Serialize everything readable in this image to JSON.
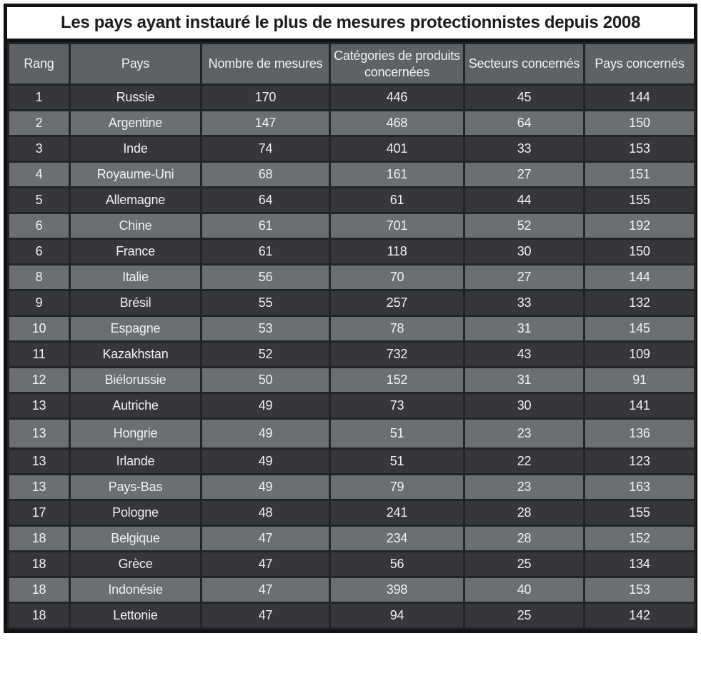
{
  "chart_data": {
    "type": "table",
    "title": "Les pays ayant instauré le plus de mesures protectionnistes depuis 2008",
    "columns": [
      "Rang",
      "Pays",
      "Nombre de mesures",
      "Catégories de produits concernées",
      "Secteurs concernés",
      "Pays concernés"
    ],
    "rows": [
      [
        "1",
        "Russie",
        "170",
        "446",
        "45",
        "144"
      ],
      [
        "2",
        "Argentine",
        "147",
        "468",
        "64",
        "150"
      ],
      [
        "3",
        "Inde",
        "74",
        "401",
        "33",
        "153"
      ],
      [
        "4",
        "Royaume-Uni",
        "68",
        "161",
        "27",
        "151"
      ],
      [
        "5",
        "Allemagne",
        "64",
        "61",
        "44",
        "155"
      ],
      [
        "6",
        "Chine",
        "61",
        "701",
        "52",
        "192"
      ],
      [
        "6",
        "France",
        "61",
        "118",
        "30",
        "150"
      ],
      [
        "8",
        "Italie",
        "56",
        "70",
        "27",
        "144"
      ],
      [
        "9",
        "Brésil",
        "55",
        "257",
        "33",
        "132"
      ],
      [
        "10",
        "Espagne",
        "53",
        "78",
        "31",
        "145"
      ],
      [
        "11",
        "Kazakhstan",
        "52",
        "732",
        "43",
        "109"
      ],
      [
        "12",
        "Biélorussie",
        "50",
        "152",
        "31",
        "91"
      ],
      [
        "13",
        "Autriche",
        "49",
        "73",
        "30",
        "141"
      ],
      [
        "13",
        "Hongrie",
        "49",
        "51",
        "23",
        "136"
      ],
      [
        "13",
        "Irlande",
        "49",
        "51",
        "22",
        "123"
      ],
      [
        "13",
        "Pays-Bas",
        "49",
        "79",
        "23",
        "163"
      ],
      [
        "17",
        "Pologne",
        "48",
        "241",
        "28",
        "155"
      ],
      [
        "18",
        "Belgique",
        "47",
        "234",
        "28",
        "152"
      ],
      [
        "18",
        "Grèce",
        "47",
        "56",
        "25",
        "134"
      ],
      [
        "18",
        "Indonésie",
        "47",
        "398",
        "40",
        "153"
      ],
      [
        "18",
        "Lettonie",
        "47",
        "94",
        "25",
        "142"
      ]
    ],
    "layout": {
      "row_striping": "alternating dark/light starting dark",
      "header_lines": [
        "Rang",
        "Pays",
        "Nombre de|mesures",
        "Catégories de|produits concernées",
        "Secteurs|concernés",
        "Pays|concernés"
      ]
    }
  },
  "colors": {
    "row_dark": "#35373a",
    "row_light": "#6b6f72",
    "header_bg": "#5e6265",
    "grid": "#232427",
    "border": "#111111",
    "text": "#f2f2f2",
    "title_text": "#1d1d1d",
    "title_bg": "#ffffff"
  },
  "column_keys": [
    "rang",
    "pays",
    "nombre-de-mesures",
    "categories-produits",
    "secteurs-concernes",
    "pays-concernes"
  ]
}
